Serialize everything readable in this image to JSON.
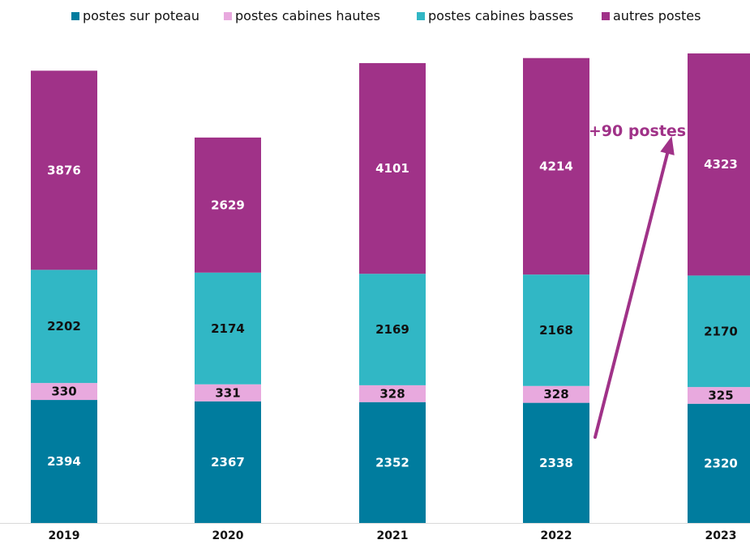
{
  "chart_data": {
    "type": "bar",
    "stacked": true,
    "categories": [
      "2019",
      "2020",
      "2021",
      "2022",
      "2023"
    ],
    "series": [
      {
        "name": "postes sur poteau",
        "color": "#007c9e",
        "label_color": "#ffffff",
        "values": [
          2394,
          2367,
          2352,
          2338,
          2320
        ]
      },
      {
        "name": "postes cabines hautes",
        "color": "#e8a9de",
        "label_color": "#111111",
        "values": [
          330,
          331,
          328,
          328,
          325
        ]
      },
      {
        "name": "postes cabines basses",
        "color": "#31b7c5",
        "label_color": "#111111",
        "values": [
          2202,
          2174,
          2169,
          2168,
          2170
        ]
      },
      {
        "name": "autres postes",
        "color": "#a03288",
        "label_color": "#ffffff",
        "values": [
          3876,
          2629,
          4101,
          4214,
          4323
        ]
      }
    ],
    "legend_position": "top",
    "grid": false,
    "annotation": {
      "text": "+90 postes",
      "color": "#a03288",
      "from_category": "2022",
      "to_category": "2023"
    }
  }
}
